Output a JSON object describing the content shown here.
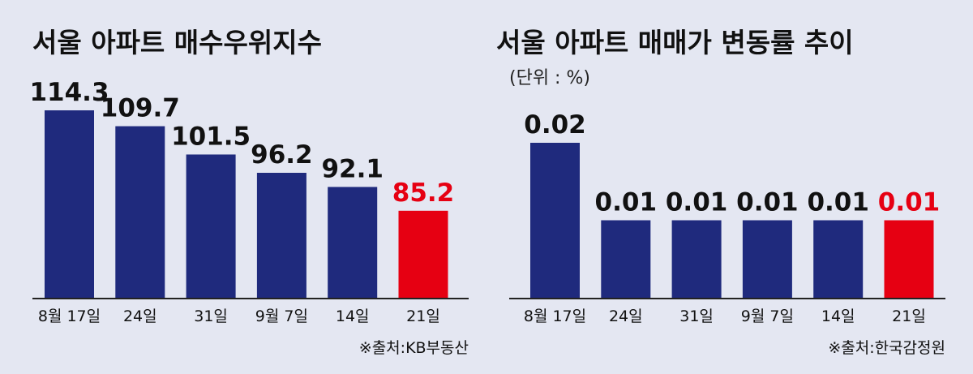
{
  "colors": {
    "bar": "#1f2a7d",
    "highlight": "#e60012",
    "background": "#e4e7f2",
    "text": "#111111"
  },
  "chart_data": [
    {
      "type": "bar",
      "title": "서울 아파트 매수우위지수",
      "unit_label": "",
      "source": "※출처:KB부동산",
      "categories": [
        "8월 17일",
        "24일",
        "31일",
        "9월 7일",
        "14일",
        "21일"
      ],
      "values": [
        114.3,
        109.7,
        101.5,
        96.2,
        92.1,
        85.2
      ],
      "value_labels": [
        "114.3",
        "109.7",
        "101.5",
        "96.2",
        "92.1",
        "85.2"
      ],
      "highlight_index": 5,
      "ylim": [
        60,
        115
      ],
      "grid": false,
      "legend": "none"
    },
    {
      "type": "bar",
      "title": "서울 아파트 매매가 변동률 추이",
      "unit_label": "(단위 : %)",
      "source": "※출처:한국감정원",
      "categories": [
        "8월 17일",
        "24일",
        "31일",
        "9월 7일",
        "14일",
        "21일"
      ],
      "values": [
        0.02,
        0.01,
        0.01,
        0.01,
        0.01,
        0.01
      ],
      "value_labels": [
        "0.02",
        "0.01",
        "0.01",
        "0.01",
        "0.01",
        "0.01"
      ],
      "highlight_index": 5,
      "ylim": [
        0,
        0.021
      ],
      "grid": false,
      "legend": "none"
    }
  ]
}
